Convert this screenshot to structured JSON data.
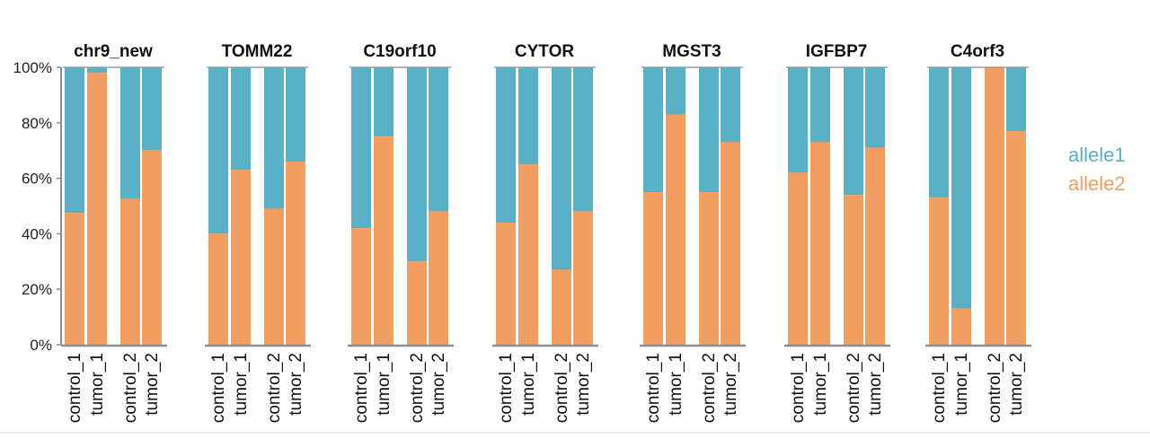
{
  "chart_data": {
    "type": "bar",
    "stacked": true,
    "percent": true,
    "ylim": [
      0,
      100
    ],
    "yticks": [
      "0%",
      "20%",
      "40%",
      "60%",
      "80%",
      "100%"
    ],
    "categories": [
      "control_1",
      "tumor_1",
      "control_2",
      "tumor_2"
    ],
    "colors": {
      "allele1": "#58b1c6",
      "allele2": "#f29e61"
    },
    "legend": {
      "placement": "right",
      "entries": [
        "allele1",
        "allele2"
      ]
    },
    "panels": [
      {
        "title": "chr9_new",
        "allele2": [
          47.5,
          98,
          52.5,
          70
        ]
      },
      {
        "title": "TOMM22",
        "allele2": [
          40,
          63,
          49,
          66
        ]
      },
      {
        "title": "C19orf10",
        "allele2": [
          42,
          75,
          30,
          48
        ]
      },
      {
        "title": "CYTOR",
        "allele2": [
          44,
          65,
          27,
          48
        ]
      },
      {
        "title": "MGST3",
        "allele2": [
          55,
          83,
          55,
          73
        ]
      },
      {
        "title": "IGFBP7",
        "allele2": [
          62,
          73,
          54,
          71
        ]
      },
      {
        "title": "C4orf3",
        "allele2": [
          53,
          13,
          100,
          77
        ]
      }
    ]
  }
}
